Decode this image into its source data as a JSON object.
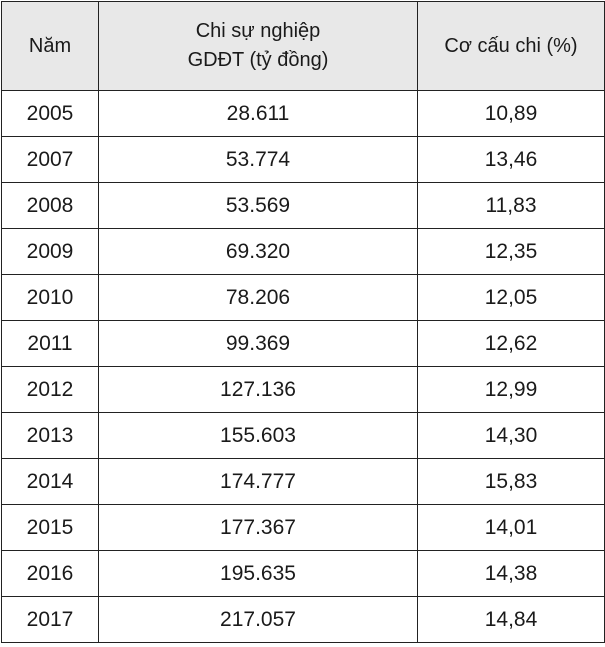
{
  "chart_data": {
    "type": "table",
    "columns": [
      "Năm",
      "Chi sự nghiệp GDĐT (tỷ đồng)",
      "Cơ cấu chi (%)"
    ],
    "header": {
      "col1": "Năm",
      "col2_line1": "Chi sự nghiệp",
      "col2_line2": "GDĐT (tỷ đồng)",
      "col3": "Cơ cấu chi (%)"
    },
    "rows": [
      [
        "2005",
        "28.611",
        "10,89"
      ],
      [
        "2007",
        "53.774",
        "13,46"
      ],
      [
        "2008",
        "53.569",
        "11,83"
      ],
      [
        "2009",
        "69.320",
        "12,35"
      ],
      [
        "2010",
        "78.206",
        "12,05"
      ],
      [
        "2011",
        "99.369",
        "12,62"
      ],
      [
        "2012",
        "127.136",
        "12,99"
      ],
      [
        "2013",
        "155.603",
        "14,30"
      ],
      [
        "2014",
        "174.777",
        "15,83"
      ],
      [
        "2015",
        "177.367",
        "14,01"
      ],
      [
        "2016",
        "195.635",
        "14,38"
      ],
      [
        "2017",
        "217.057",
        "14,84"
      ]
    ]
  }
}
